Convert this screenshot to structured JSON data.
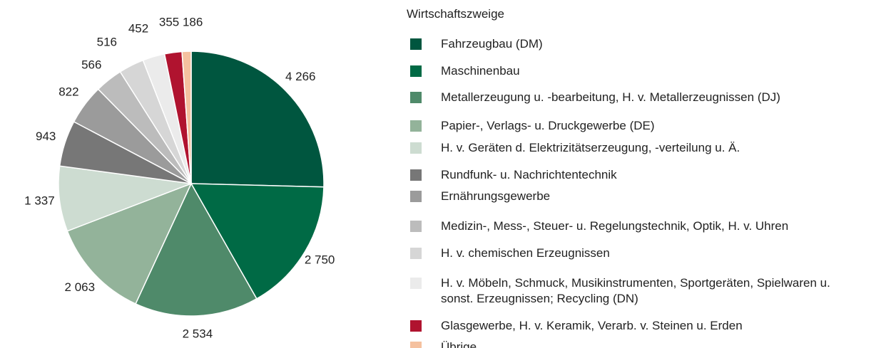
{
  "chart_data": {
    "type": "pie",
    "legend_title": "Wirtschaftszweige",
    "categories": [
      "Fahrzeugbau (DM)",
      "Maschinenbau",
      "Metallerzeugung u. -bearbeitung, H. v. Metallerzeugnissen (DJ)",
      "Papier-, Verlags- u. Druckgewerbe (DE)",
      "H. v. Geräten d. Elektrizitätserzeugung, -verteilung u. Ä.",
      "Rundfunk- u. Nachrichtentechnik",
      "Ernährungsgewerbe",
      "Medizin-, Mess-, Steuer- u. Regelungstechnik, Optik, H. v. Uhren",
      "H. v. chemischen Erzeugnissen",
      "H. v. Möbeln, Schmuck, Musikinstrumenten, Sportgeräten, Spielwaren u. sonst. Erzeugnissen; Recycling (DN)",
      "Glasgewerbe, H. v. Keramik, Verarb. v. Steinen u. Erden",
      "Übrige"
    ],
    "values": [
      4266,
      2750,
      2534,
      2063,
      1337,
      943,
      822,
      566,
      516,
      452,
      355,
      186
    ],
    "value_labels": [
      "4 266",
      "2 750",
      "2 534",
      "2 063",
      "1 337",
      "943",
      "822",
      "566",
      "516",
      "452",
      "355",
      "186"
    ],
    "colors": [
      "#00563f",
      "#006a45",
      "#4f8a6a",
      "#93b39a",
      "#cddcd1",
      "#777777",
      "#9b9b9b",
      "#bcbcbc",
      "#d6d6d6",
      "#ebebeb",
      "#b0132f",
      "#f5c19f"
    ]
  }
}
